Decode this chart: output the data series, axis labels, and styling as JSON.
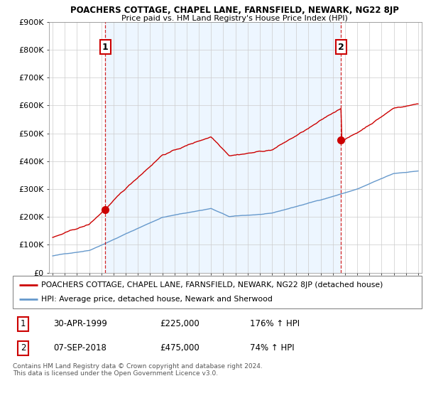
{
  "title": "POACHERS COTTAGE, CHAPEL LANE, FARNSFIELD, NEWARK, NG22 8JP",
  "subtitle": "Price paid vs. HM Land Registry's House Price Index (HPI)",
  "red_label": "POACHERS COTTAGE, CHAPEL LANE, FARNSFIELD, NEWARK, NG22 8JP (detached house)",
  "blue_label": "HPI: Average price, detached house, Newark and Sherwood",
  "annotation1_date": "30-APR-1999",
  "annotation1_price": "£225,000",
  "annotation1_hpi": "176% ↑ HPI",
  "annotation2_date": "07-SEP-2018",
  "annotation2_price": "£475,000",
  "annotation2_hpi": "74% ↑ HPI",
  "footer": "Contains HM Land Registry data © Crown copyright and database right 2024.\nThis data is licensed under the Open Government Licence v3.0.",
  "ylim": [
    0,
    900000
  ],
  "yticks": [
    0,
    100000,
    200000,
    300000,
    400000,
    500000,
    600000,
    700000,
    800000,
    900000
  ],
  "ytick_labels": [
    "£0",
    "£100K",
    "£200K",
    "£300K",
    "£400K",
    "£500K",
    "£600K",
    "£700K",
    "£800K",
    "£900K"
  ],
  "background_color": "#ffffff",
  "grid_color": "#cccccc",
  "red_color": "#cc0000",
  "blue_color": "#6699cc",
  "shade_color": "#ddeeff",
  "point1_x": 1999.33,
  "point1_y": 225000,
  "point2_x": 2018.67,
  "point2_y": 475000,
  "xlim_left": 1994.7,
  "xlim_right": 2025.3,
  "year_start": 1995,
  "year_end": 2025
}
